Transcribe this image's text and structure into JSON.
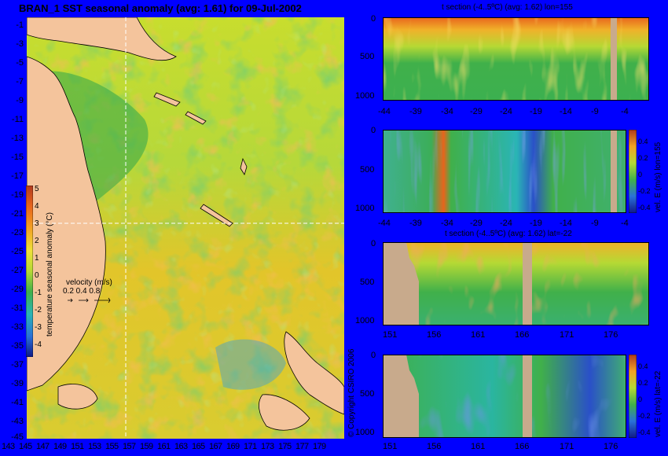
{
  "map": {
    "title": "BRAN_1  SST seasonal anomaly (avg: 1.61) for 09-Jul-2002",
    "lat_ticks": [
      "-1",
      "-3",
      "-5",
      "-7",
      "-9",
      "-11",
      "-13",
      "-15",
      "-17",
      "-19",
      "-21",
      "-23",
      "-25",
      "-27",
      "-29",
      "-31",
      "-33",
      "-35",
      "-37",
      "-39",
      "-41",
      "-43",
      "-45"
    ],
    "lon_ticks": [
      "143",
      "145",
      "147",
      "149",
      "151",
      "153",
      "155",
      "157",
      "159",
      "161",
      "163",
      "165",
      "167",
      "169",
      "171",
      "173",
      "175",
      "177",
      "179"
    ],
    "colorbar": {
      "label": "temperature seasonal anomaly (°C)",
      "ticks": [
        "5",
        "4",
        "3",
        "2",
        "1",
        "0",
        "-1",
        "-2",
        "-3",
        "-4"
      ],
      "range": [
        -4,
        5
      ]
    },
    "velocity_legend": {
      "title": "velocity (m/s)",
      "scale": "0.2 0.4 0.8"
    },
    "crosshair": {
      "lon": 155,
      "lat": -22
    },
    "land_color": "#f4c49c",
    "ocean_color": "#e6c823"
  },
  "panels": [
    {
      "id": "t-lon",
      "title": "t section (-4..5ºC) (avg: 1.62) lon=155",
      "x_ticks": [
        "-44",
        "-39",
        "-34",
        "-29",
        "-24",
        "-19",
        "-14",
        "-9",
        "-4"
      ],
      "y_ticks": [
        "0",
        "500",
        "1000"
      ],
      "side_label": ""
    },
    {
      "id": "u-lon",
      "title": "",
      "x_ticks": [
        "-44",
        "-39",
        "-34",
        "-29",
        "-24",
        "-19",
        "-14",
        "-9",
        "-4"
      ],
      "y_ticks": [
        "0",
        "500",
        "1000"
      ],
      "side_label": "vel. E (m/s) lon=155",
      "cb_ticks": [
        "0.4",
        "0.2",
        "0",
        "-0.2",
        "-0.4"
      ]
    },
    {
      "id": "t-lat",
      "title": "t section (-4..5ºC) (avg: 1.62) lat=-22",
      "x_ticks": [
        "151",
        "156",
        "161",
        "166",
        "171",
        "176"
      ],
      "y_ticks": [
        "0",
        "500",
        "1000"
      ],
      "side_label": ""
    },
    {
      "id": "u-lat",
      "title": "",
      "x_ticks": [
        "151",
        "156",
        "161",
        "166",
        "171",
        "176"
      ],
      "y_ticks": [
        "0",
        "500",
        "1000"
      ],
      "side_label": "vel. E (m/s) lat=-22",
      "cb_ticks": [
        "0.4",
        "0.2",
        "0",
        "-0.2",
        "-0.4"
      ]
    }
  ],
  "copyright": "© Copyright CSIRO 2006",
  "chart_data": [
    {
      "type": "heatmap",
      "title": "BRAN_1  SST seasonal anomaly (avg: 1.61) for 09-Jul-2002",
      "x": [
        143,
        145,
        147,
        149,
        151,
        153,
        155,
        157,
        159,
        161,
        163,
        165,
        167,
        169,
        171,
        173,
        175,
        177,
        179
      ],
      "y": [
        -1,
        -3,
        -5,
        -7,
        -9,
        -11,
        -13,
        -15,
        -17,
        -19,
        -21,
        -23,
        -25,
        -27,
        -29,
        -31,
        -33,
        -35,
        -37,
        -39,
        -41,
        -43,
        -45
      ],
      "xlim": [
        143,
        180
      ],
      "ylim": [
        -45,
        0
      ],
      "zlabel": "temperature seasonal anomaly (°C)",
      "zlim": [
        -4,
        5
      ],
      "average": 1.61,
      "date": "09-Jul-2002"
    },
    {
      "type": "heatmap",
      "title": "t section (-4..5ºC) (avg: 1.62) lon=155",
      "x": [
        -44,
        -39,
        -34,
        -29,
        -24,
        -19,
        -14,
        -9,
        -4
      ],
      "xlim": [
        -45,
        0
      ],
      "ylim": [
        1050,
        0
      ],
      "y_ticks": [
        0,
        500,
        1000
      ],
      "zlim": [
        -4,
        5
      ],
      "average": 1.62
    },
    {
      "type": "heatmap",
      "title": "",
      "x": [
        -44,
        -39,
        -34,
        -29,
        -24,
        -19,
        -14,
        -9,
        -4
      ],
      "xlim": [
        -45,
        0
      ],
      "ylim": [
        1050,
        0
      ],
      "zlabel": "vel. E (m/s) lon=155",
      "zlim": [
        -0.4,
        0.4
      ]
    },
    {
      "type": "heatmap",
      "title": "t section (-4..5ºC) (avg: 1.62) lat=-22",
      "x": [
        151,
        156,
        161,
        166,
        171,
        176
      ],
      "xlim": [
        150,
        180
      ],
      "ylim": [
        1050,
        0
      ],
      "zlim": [
        -4,
        5
      ],
      "average": 1.62
    },
    {
      "type": "heatmap",
      "title": "",
      "x": [
        151,
        156,
        161,
        166,
        171,
        176
      ],
      "xlim": [
        150,
        180
      ],
      "ylim": [
        1050,
        0
      ],
      "zlabel": "vel. E (m/s) lat=-22",
      "zlim": [
        -0.4,
        0.4
      ]
    }
  ]
}
